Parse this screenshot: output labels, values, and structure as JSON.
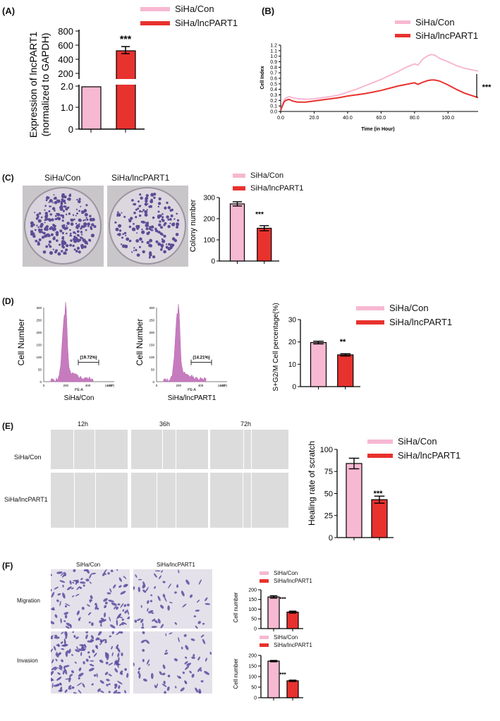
{
  "colors": {
    "con": "#f7b8d2",
    "lnc": "#e8322e",
    "axis": "#000000"
  },
  "panels": {
    "A": {
      "label": "(A)",
      "legend": [
        "SiHa/Con",
        "SiHa/lncPART1"
      ],
      "ylabel_line1": "Expression of lncPART1",
      "ylabel_line2": "(normalized to GAPDH)",
      "sig": "***",
      "upper_ticks": [
        "200",
        "400",
        "600",
        "800"
      ],
      "lower_ticks": [
        "0",
        "1.0",
        "2.0"
      ]
    },
    "B": {
      "label": "(B)",
      "legend": [
        "SiHa/Con",
        "SiHa/lncPART1"
      ],
      "ylabel": "Cell Index",
      "xlabel": "Time (in Hour)",
      "yticks": [
        "0.0",
        "0.1",
        "0.2",
        "0.3",
        "0.4",
        "0.5",
        "0.6",
        "0.7",
        "0.8",
        "0.9",
        "1.0",
        "1.1",
        "1.2"
      ],
      "xticks": [
        "0.0",
        "20.0",
        "40.0",
        "60.0",
        "80.0",
        "100.0"
      ],
      "sig": "***"
    },
    "C": {
      "label": "(C)",
      "img_titles": [
        "SiHa/Con",
        "SiHa/lncPART1"
      ],
      "legend": [
        "SiHa/Con",
        "SiHa/lncPART1"
      ],
      "ylabel": "Colony number",
      "yticks": [
        "0",
        "100",
        "200",
        "300"
      ],
      "sig": "***"
    },
    "D": {
      "label": "(D)",
      "hist": [
        {
          "ylabel": "Cell Number",
          "gate": "19.72%",
          "xaxis": "PE-A",
          "caption": "SiHa/Con",
          "yticks": [
            "0",
            "50",
            "100",
            "150",
            "200",
            "250",
            "300"
          ],
          "xticks": [
            "0",
            "200",
            "400",
            "600"
          ],
          "scale": "(x 10³)"
        },
        {
          "ylabel": "Cell Number",
          "gate": "14.21%",
          "xaxis": "PE-A",
          "caption": "SiHa/lncPART1",
          "yticks": [
            "0",
            "50",
            "100",
            "150",
            "200",
            "250",
            "300"
          ],
          "xticks": [
            "0",
            "200",
            "400",
            "600"
          ],
          "scale": "(x 10³)"
        }
      ],
      "legend": [
        "SiHa/Con",
        "SiHa/lncPART1"
      ],
      "ylabel": "S+G2/M Cell percentage(%)",
      "yticks": [
        "0",
        "10",
        "20",
        "30"
      ],
      "sig": "**"
    },
    "E": {
      "label": "(E)",
      "times": [
        "12h",
        "36h",
        "72h"
      ],
      "rows": [
        "SiHa/Con",
        "SiHa/lncPART1"
      ],
      "legend": [
        "SiHa/Con",
        "SiHa/lncPART1"
      ],
      "ylabel": "Healing rate of scratch",
      "yticks": [
        "0",
        "25",
        "50",
        "75",
        "100"
      ],
      "sig": "***"
    },
    "F": {
      "label": "(F)",
      "cols": [
        "SiHa/Con",
        "SiHa/lncPART1"
      ],
      "rows": [
        "Migration",
        "Invasion"
      ],
      "legend": [
        "SiHa/Con",
        "SiHa/lncPART1"
      ],
      "ylabel": "Cell number",
      "yticks": [
        "0",
        "50",
        "100",
        "150",
        "200"
      ],
      "sig": "***"
    }
  },
  "chart_data": [
    {
      "type": "bar",
      "panel": "A",
      "categories": [
        "SiHa/Con",
        "SiHa/lncPART1"
      ],
      "values": [
        1.0,
        560
      ],
      "errors": [
        0,
        45
      ],
      "ylabel": "Expression of lncPART1 (normalized to GAPDH)",
      "ylim": [
        0,
        800
      ],
      "axis_break": [
        2.0,
        200
      ]
    },
    {
      "type": "line",
      "panel": "B",
      "xlabel": "Time (in Hour)",
      "ylabel": "Cell Index",
      "xlim": [
        0,
        118
      ],
      "ylim": [
        0,
        1.2
      ],
      "series": [
        {
          "name": "SiHa/Con",
          "x": [
            0,
            1,
            2,
            3,
            5,
            7,
            10,
            15,
            20,
            25,
            30,
            35,
            40,
            45,
            50,
            55,
            60,
            65,
            70,
            75,
            80,
            82,
            85,
            88,
            90,
            92,
            95,
            100,
            105,
            110,
            115,
            118
          ],
          "y": [
            0.02,
            0.12,
            0.2,
            0.24,
            0.27,
            0.25,
            0.23,
            0.22,
            0.23,
            0.25,
            0.27,
            0.3,
            0.35,
            0.4,
            0.46,
            0.52,
            0.58,
            0.65,
            0.72,
            0.8,
            0.86,
            0.84,
            0.95,
            1.01,
            1.03,
            1.02,
            0.96,
            0.9,
            0.83,
            0.78,
            0.75,
            0.73
          ]
        },
        {
          "name": "SiHa/lncPART1",
          "x": [
            0,
            1,
            2,
            3,
            5,
            7,
            10,
            15,
            20,
            25,
            30,
            35,
            40,
            45,
            50,
            55,
            60,
            65,
            70,
            75,
            80,
            82,
            85,
            88,
            90,
            92,
            95,
            100,
            105,
            110,
            115,
            118
          ],
          "y": [
            0.02,
            0.1,
            0.17,
            0.2,
            0.22,
            0.19,
            0.17,
            0.17,
            0.19,
            0.21,
            0.23,
            0.25,
            0.28,
            0.3,
            0.32,
            0.35,
            0.38,
            0.42,
            0.46,
            0.49,
            0.52,
            0.49,
            0.53,
            0.56,
            0.57,
            0.57,
            0.55,
            0.48,
            0.4,
            0.33,
            0.28,
            0.25
          ]
        }
      ]
    },
    {
      "type": "bar",
      "panel": "C",
      "categories": [
        "SiHa/Con",
        "SiHa/lncPART1"
      ],
      "values": [
        270,
        155
      ],
      "errors": [
        10,
        12
      ],
      "ylabel": "Colony number",
      "ylim": [
        0,
        300
      ]
    },
    {
      "type": "bar",
      "panel": "D",
      "categories": [
        "SiHa/Con",
        "SiHa/lncPART1"
      ],
      "values": [
        19.72,
        14.21
      ],
      "errors": [
        0.6,
        0.5
      ],
      "ylabel": "S+G2/M Cell percentage(%)",
      "ylim": [
        0,
        30
      ]
    },
    {
      "type": "bar",
      "panel": "E",
      "categories": [
        "SiHa/Con",
        "SiHa/lncPART1"
      ],
      "values": [
        84,
        43
      ],
      "errors": [
        6,
        4
      ],
      "ylabel": "Healing rate of scratch",
      "ylim": [
        0,
        100
      ]
    },
    {
      "type": "bar",
      "panel": "F-Migration",
      "categories": [
        "SiHa/Con",
        "SiHa/lncPART1"
      ],
      "values": [
        163,
        85
      ],
      "errors": [
        6,
        5
      ],
      "ylabel": "Cell number",
      "ylim": [
        0,
        200
      ]
    },
    {
      "type": "bar",
      "panel": "F-Invasion",
      "categories": [
        "SiHa/Con",
        "SiHa/lncPART1"
      ],
      "values": [
        173,
        80
      ],
      "errors": [
        3,
        3
      ],
      "ylabel": "Cell number",
      "ylim": [
        0,
        200
      ]
    }
  ]
}
